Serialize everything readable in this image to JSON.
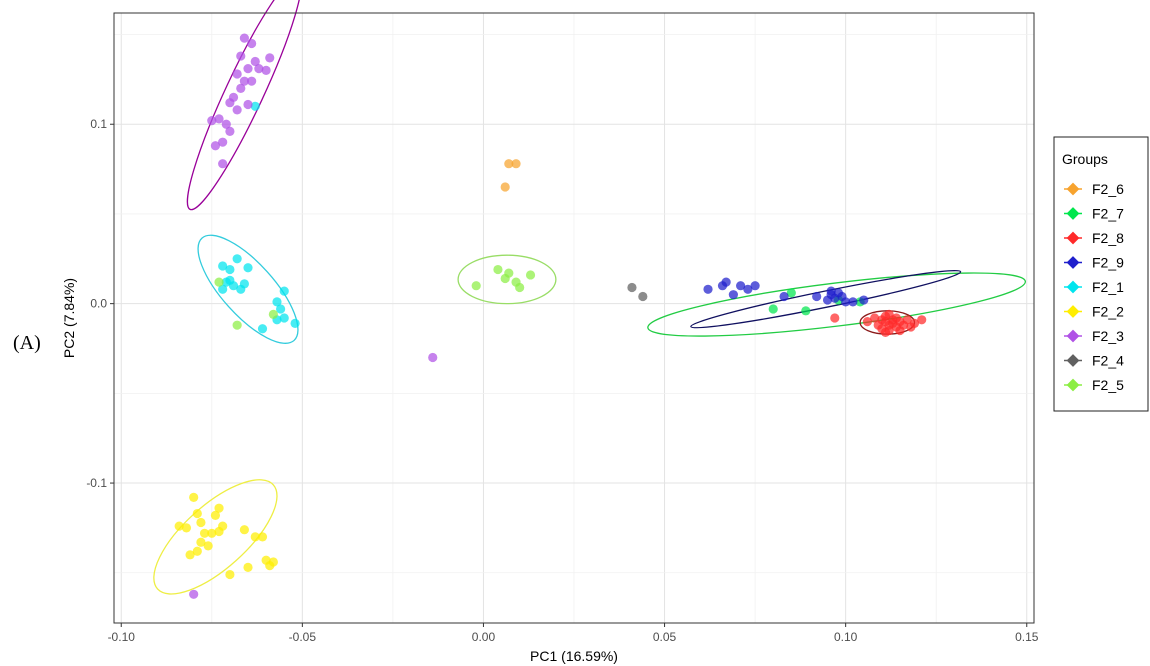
{
  "panel_label": "(A)",
  "chart_data": {
    "type": "scatter",
    "xlabel": "PC1 (16.59%)",
    "ylabel": "PC2 (7.84%)",
    "xlim": [
      -0.102,
      0.152
    ],
    "ylim": [
      -0.178,
      0.162
    ],
    "xticks": [
      -0.1,
      -0.05,
      0.0,
      0.05,
      0.1,
      0.15
    ],
    "xtick_labels": [
      "-0.10",
      "-0.05",
      "0.00",
      "0.05",
      "0.10",
      "0.15"
    ],
    "yticks": [
      -0.1,
      0.0,
      0.1
    ],
    "ytick_labels": [
      "-0.1",
      "0.0",
      "0.1"
    ],
    "grid": true,
    "legend_title": "Groups",
    "legend_position": "right",
    "series": [
      {
        "name": "F2_6",
        "color": "#f7a32e",
        "points": [
          [
            0.007,
            0.078
          ],
          [
            0.009,
            0.078
          ],
          [
            0.006,
            0.065
          ]
        ],
        "ellipse": null
      },
      {
        "name": "F2_7",
        "color": "#00e64d",
        "points": [
          [
            0.08,
            -0.003
          ],
          [
            0.085,
            0.006
          ],
          [
            0.089,
            -0.004
          ],
          [
            0.098,
            0.002
          ],
          [
            0.104,
            0.001
          ]
        ],
        "ellipse": {
          "cx": 0.0975,
          "cy": -0.0005,
          "rx": 0.0525,
          "ry": 0.012,
          "angle": -7,
          "color": "#22cc44"
        }
      },
      {
        "name": "F2_8",
        "color": "#ff2a2a",
        "points": [
          [
            0.106,
            -0.01
          ],
          [
            0.108,
            -0.008
          ],
          [
            0.109,
            -0.012
          ],
          [
            0.11,
            -0.009
          ],
          [
            0.11,
            -0.014
          ],
          [
            0.111,
            -0.01
          ],
          [
            0.111,
            -0.007
          ],
          [
            0.112,
            -0.012
          ],
          [
            0.112,
            -0.015
          ],
          [
            0.113,
            -0.009
          ],
          [
            0.113,
            -0.011
          ],
          [
            0.114,
            -0.013
          ],
          [
            0.114,
            -0.008
          ],
          [
            0.115,
            -0.01
          ],
          [
            0.115,
            -0.015
          ],
          [
            0.116,
            -0.012
          ],
          [
            0.117,
            -0.009
          ],
          [
            0.118,
            -0.013
          ],
          [
            0.119,
            -0.011
          ],
          [
            0.121,
            -0.009
          ],
          [
            0.097,
            -0.008
          ],
          [
            0.112,
            -0.006
          ],
          [
            0.111,
            -0.016
          ]
        ],
        "ellipse": {
          "cx": 0.1115,
          "cy": -0.0105,
          "rx": 0.0075,
          "ry": 0.0065,
          "angle": 0,
          "color": "#8b1a1a"
        }
      },
      {
        "name": "F2_9",
        "color": "#1f1fcc",
        "points": [
          [
            0.062,
            0.008
          ],
          [
            0.066,
            0.01
          ],
          [
            0.067,
            0.012
          ],
          [
            0.069,
            0.005
          ],
          [
            0.071,
            0.01
          ],
          [
            0.073,
            0.008
          ],
          [
            0.075,
            0.01
          ],
          [
            0.083,
            0.004
          ],
          [
            0.092,
            0.004
          ],
          [
            0.095,
            0.002
          ],
          [
            0.096,
            0.005
          ],
          [
            0.096,
            0.007
          ],
          [
            0.097,
            0.003
          ],
          [
            0.098,
            0.006
          ],
          [
            0.099,
            0.004
          ],
          [
            0.1,
            0.001
          ],
          [
            0.102,
            0.001
          ],
          [
            0.105,
            0.002
          ]
        ],
        "ellipse": {
          "cx": 0.0945,
          "cy": 0.0025,
          "rx": 0.038,
          "ry": 0.0045,
          "angle": -11.5,
          "color": "#101060"
        }
      },
      {
        "name": "F2_1",
        "color": "#00e5ee",
        "points": [
          [
            -0.072,
            0.021
          ],
          [
            -0.07,
            0.019
          ],
          [
            -0.068,
            0.025
          ],
          [
            -0.071,
            0.012
          ],
          [
            -0.069,
            0.01
          ],
          [
            -0.066,
            0.011
          ],
          [
            -0.067,
            0.008
          ],
          [
            -0.072,
            0.008
          ],
          [
            -0.07,
            0.013
          ],
          [
            -0.065,
            0.02
          ],
          [
            -0.057,
            0.001
          ],
          [
            -0.055,
            0.007
          ],
          [
            -0.056,
            -0.003
          ],
          [
            -0.055,
            -0.008
          ],
          [
            -0.057,
            -0.009
          ],
          [
            -0.052,
            -0.011
          ],
          [
            -0.061,
            -0.014
          ],
          [
            -0.063,
            0.11
          ]
        ],
        "ellipse": {
          "cx": -0.065,
          "cy": 0.008,
          "rx": 0.019,
          "ry": 0.0145,
          "angle": 48,
          "color": "#33ccdd"
        }
      },
      {
        "name": "F2_2",
        "color": "#ffee00",
        "points": [
          [
            -0.082,
            -0.125
          ],
          [
            -0.08,
            -0.108
          ],
          [
            -0.079,
            -0.117
          ],
          [
            -0.078,
            -0.122
          ],
          [
            -0.077,
            -0.128
          ],
          [
            -0.076,
            -0.135
          ],
          [
            -0.075,
            -0.128
          ],
          [
            -0.074,
            -0.118
          ],
          [
            -0.073,
            -0.114
          ],
          [
            -0.072,
            -0.124
          ],
          [
            -0.081,
            -0.14
          ],
          [
            -0.084,
            -0.124
          ],
          [
            -0.079,
            -0.138
          ],
          [
            -0.078,
            -0.133
          ],
          [
            -0.073,
            -0.127
          ],
          [
            -0.07,
            -0.151
          ],
          [
            -0.065,
            -0.147
          ],
          [
            -0.063,
            -0.13
          ],
          [
            -0.061,
            -0.13
          ],
          [
            -0.066,
            -0.126
          ],
          [
            -0.06,
            -0.143
          ],
          [
            -0.059,
            -0.146
          ],
          [
            -0.058,
            -0.144
          ]
        ],
        "ellipse": {
          "cx": -0.074,
          "cy": -0.13,
          "rx": 0.0215,
          "ry": 0.0175,
          "angle": -42,
          "color": "#eeee44"
        }
      },
      {
        "name": "F2_3",
        "color": "#b052e6",
        "points": [
          [
            -0.066,
            0.148
          ],
          [
            -0.064,
            0.145
          ],
          [
            -0.067,
            0.138
          ],
          [
            -0.063,
            0.135
          ],
          [
            -0.062,
            0.131
          ],
          [
            -0.065,
            0.131
          ],
          [
            -0.068,
            0.128
          ],
          [
            -0.066,
            0.124
          ],
          [
            -0.064,
            0.124
          ],
          [
            -0.06,
            0.13
          ],
          [
            -0.059,
            0.137
          ],
          [
            -0.067,
            0.12
          ],
          [
            -0.069,
            0.115
          ],
          [
            -0.07,
            0.112
          ],
          [
            -0.065,
            0.111
          ],
          [
            -0.068,
            0.108
          ],
          [
            -0.071,
            0.1
          ],
          [
            -0.072,
            0.09
          ],
          [
            -0.074,
            0.088
          ],
          [
            -0.075,
            0.102
          ],
          [
            -0.073,
            0.103
          ],
          [
            -0.07,
            0.096
          ],
          [
            -0.072,
            0.078
          ],
          [
            -0.014,
            -0.03
          ],
          [
            -0.08,
            -0.162
          ]
        ],
        "ellipse": {
          "cx": -0.066,
          "cy": 0.1175,
          "rx": 0.0355,
          "ry": 0.0105,
          "angle": -65,
          "color": "#990099"
        }
      },
      {
        "name": "F2_4",
        "color": "#606060",
        "points": [
          [
            0.041,
            0.009
          ],
          [
            0.044,
            0.004
          ]
        ],
        "ellipse": null
      },
      {
        "name": "F2_5",
        "color": "#8cee44",
        "points": [
          [
            -0.002,
            0.01
          ],
          [
            0.004,
            0.019
          ],
          [
            0.006,
            0.014
          ],
          [
            0.007,
            0.017
          ],
          [
            0.009,
            0.012
          ],
          [
            0.01,
            0.009
          ],
          [
            0.013,
            0.016
          ],
          [
            -0.068,
            -0.012
          ],
          [
            -0.073,
            0.012
          ],
          [
            -0.058,
            -0.006
          ]
        ],
        "ellipse": {
          "cx": 0.0065,
          "cy": 0.0135,
          "rx": 0.0135,
          "ry": 0.0135,
          "angle": 0,
          "color": "#99dd66"
        }
      }
    ]
  }
}
